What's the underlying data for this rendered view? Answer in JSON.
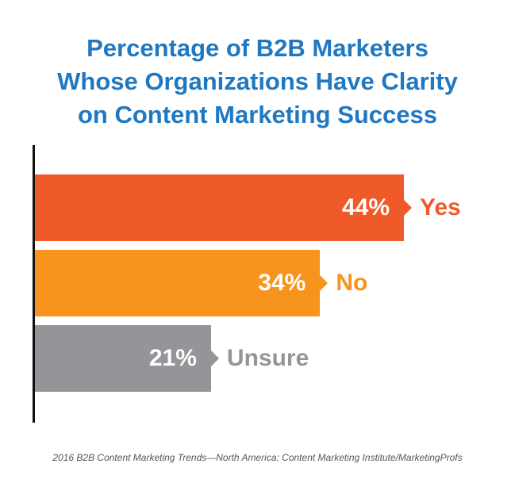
{
  "title_lines": [
    "Percentage of B2B Marketers",
    "Whose Organizations Have Clarity",
    "on Content Marketing Success"
  ],
  "source": "2016 B2B Content Marketing Trends—North America: Content Marketing Institute/MarketingProfs",
  "chart_data": {
    "type": "bar",
    "orientation": "horizontal",
    "title": "Percentage of B2B Marketers Whose Organizations Have Clarity on Content Marketing Success",
    "categories": [
      "Yes",
      "No",
      "Unsure"
    ],
    "values": [
      44,
      34,
      21
    ],
    "value_labels": [
      "44%",
      "34%",
      "21%"
    ],
    "colors": [
      "#f05a28",
      "#f7941d",
      "#939598"
    ],
    "label_colors": [
      "#f05a28",
      "#f7941d",
      "#939598"
    ],
    "xlim": [
      0,
      100
    ],
    "grid": false,
    "legend": "none"
  }
}
